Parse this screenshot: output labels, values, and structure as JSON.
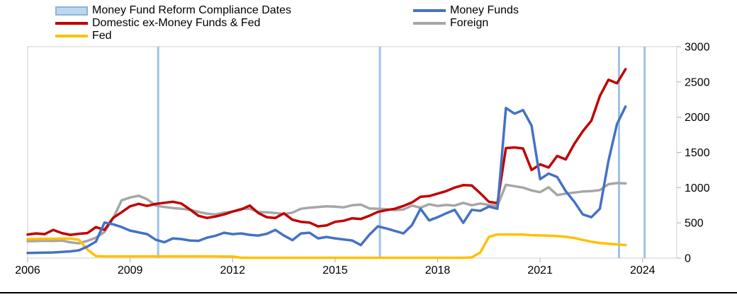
{
  "legend": {
    "columns": [
      {
        "side": "left",
        "items": [
          {
            "id": "compliance-dates",
            "label": "Money Fund Reform Compliance Dates",
            "swatch": "band",
            "fill": "#BDD7EE",
            "stroke": "#8DB4D9"
          },
          {
            "id": "domestic",
            "label": "Domestic ex-Money Funds & Fed",
            "swatch": "line",
            "color": "#C00000"
          },
          {
            "id": "fed",
            "label": "Fed",
            "swatch": "line",
            "color": "#FFC000"
          }
        ]
      },
      {
        "side": "right",
        "items": [
          {
            "id": "money-funds",
            "label": "Money Funds",
            "swatch": "line",
            "color": "#4472C4"
          },
          {
            "id": "foreign",
            "label": "Foreign",
            "swatch": "line",
            "color": "#A6A6A6"
          }
        ]
      }
    ]
  },
  "chart_data": {
    "type": "line",
    "title": "",
    "xlabel": "",
    "ylabel": "",
    "xlim": [
      2006,
      2025
    ],
    "ylim": [
      0,
      3000
    ],
    "x_ticks": [
      2006,
      2009,
      2012,
      2015,
      2018,
      2021,
      2024
    ],
    "y_ticks": [
      0,
      500,
      1000,
      1500,
      2000,
      2500,
      3000
    ],
    "y_axis_side": "right",
    "grid": false,
    "x": [
      2006,
      2006.25,
      2006.5,
      2006.75,
      2007,
      2007.25,
      2007.5,
      2007.75,
      2008,
      2008.25,
      2008.5,
      2008.75,
      2009,
      2009.25,
      2009.5,
      2009.75,
      2010,
      2010.25,
      2010.5,
      2010.75,
      2011,
      2011.25,
      2011.5,
      2011.75,
      2012,
      2012.25,
      2012.5,
      2012.75,
      2013,
      2013.25,
      2013.5,
      2013.75,
      2014,
      2014.25,
      2014.5,
      2014.75,
      2015,
      2015.25,
      2015.5,
      2015.75,
      2016,
      2016.25,
      2016.5,
      2016.75,
      2017,
      2017.25,
      2017.5,
      2017.75,
      2018,
      2018.25,
      2018.5,
      2018.75,
      2019,
      2019.25,
      2019.5,
      2019.75,
      2020,
      2020.25,
      2020.5,
      2020.75,
      2021,
      2021.25,
      2021.5,
      2021.75,
      2022,
      2022.25,
      2022.5,
      2022.75,
      2023,
      2023.25,
      2023.5
    ],
    "series": [
      {
        "name": "Foreign",
        "color": "#A6A6A6",
        "values": [
          240,
          242,
          246,
          243,
          248,
          225,
          210,
          245,
          290,
          370,
          560,
          820,
          860,
          885,
          835,
          745,
          725,
          710,
          700,
          685,
          655,
          630,
          620,
          645,
          660,
          700,
          700,
          655,
          650,
          640,
          625,
          645,
          700,
          715,
          725,
          735,
          730,
          720,
          750,
          760,
          705,
          700,
          695,
          680,
          690,
          745,
          715,
          765,
          740,
          755,
          745,
          785,
          750,
          775,
          755,
          740,
          1040,
          1020,
          1000,
          960,
          935,
          1005,
          895,
          915,
          930,
          945,
          950,
          965,
          1050,
          1065,
          1060
        ]
      },
      {
        "name": "Fed",
        "color": "#FFC000",
        "values": [
          270,
          272,
          274,
          275,
          277,
          277,
          260,
          120,
          28,
          25,
          25,
          25,
          25,
          25,
          25,
          25,
          25,
          25,
          25,
          25,
          25,
          25,
          25,
          23,
          23,
          5,
          5,
          5,
          5,
          5,
          5,
          5,
          5,
          5,
          5,
          5,
          5,
          5,
          5,
          5,
          5,
          5,
          5,
          5,
          5,
          5,
          5,
          5,
          5,
          5,
          5,
          5,
          10,
          80,
          300,
          335,
          335,
          335,
          333,
          325,
          322,
          318,
          312,
          302,
          285,
          258,
          233,
          215,
          205,
          195,
          185
        ]
      },
      {
        "name": "Domestic ex-Money Funds & Fed",
        "color": "#C00000",
        "values": [
          335,
          350,
          340,
          400,
          355,
          330,
          345,
          355,
          440,
          400,
          570,
          650,
          735,
          770,
          740,
          770,
          785,
          800,
          775,
          690,
          600,
          570,
          590,
          620,
          660,
          690,
          745,
          640,
          580,
          570,
          635,
          545,
          515,
          505,
          450,
          465,
          515,
          530,
          565,
          555,
          600,
          655,
          680,
          700,
          740,
          790,
          870,
          880,
          915,
          950,
          1000,
          1035,
          1030,
          920,
          800,
          780,
          1560,
          1570,
          1555,
          1250,
          1330,
          1285,
          1450,
          1400,
          1620,
          1800,
          1950,
          2300,
          2530,
          2480,
          2680
        ]
      },
      {
        "name": "Money Funds",
        "color": "#4472C4",
        "values": [
          73,
          75,
          78,
          80,
          88,
          95,
          110,
          165,
          235,
          505,
          480,
          440,
          390,
          365,
          340,
          260,
          225,
          280,
          270,
          250,
          245,
          290,
          317,
          360,
          340,
          350,
          330,
          320,
          345,
          400,
          320,
          255,
          350,
          360,
          280,
          300,
          280,
          265,
          250,
          185,
          330,
          450,
          420,
          385,
          350,
          470,
          700,
          535,
          580,
          635,
          685,
          500,
          685,
          670,
          730,
          700,
          2130,
          2050,
          2100,
          1880,
          1120,
          1200,
          1150,
          950,
          800,
          620,
          580,
          700,
          1380,
          1900,
          2150
        ]
      }
    ],
    "compliance_dates": {
      "label": "Money Fund Reform Compliance Dates",
      "color": "#9DC3E6",
      "x": [
        2009.82,
        2016.31,
        2023.31,
        2024.06
      ]
    }
  }
}
